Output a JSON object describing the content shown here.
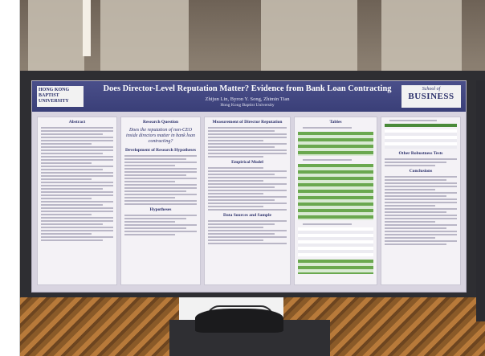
{
  "poster": {
    "title": "Does Director-Level Reputation Matter? Evidence from Bank Loan Contracting",
    "authors": "Zhijun Lin, Byron Y. Song, Zhimin Tian",
    "affiliation": "Hong Kong Baptist University",
    "logo_right_top": "School of",
    "logo_right_main": "BUSINESS",
    "logo_left": "HONG KONG BAPTIST UNIVERSITY",
    "sections": {
      "abstract": "Abstract",
      "research_question": "Research Question",
      "question_text": "Does the reputation of non-CEO inside directors matter in bank loan contracting?",
      "hypotheses": "Development of Research Hypotheses",
      "hypotheses_heading": "Hypotheses",
      "measurement": "Measurement of Director Reputation",
      "empirical_model": "Empirical Model",
      "data_sources": "Data Sources and Sample",
      "tables": "Tables",
      "robustness": "Other Robustness Tests",
      "conclusions": "Conclusions"
    }
  },
  "colors": {
    "title_bar": "#3a3f78",
    "poster_bg": "#d8d4e0",
    "table_green": "#6aa84f",
    "board": "#2e2e32"
  }
}
